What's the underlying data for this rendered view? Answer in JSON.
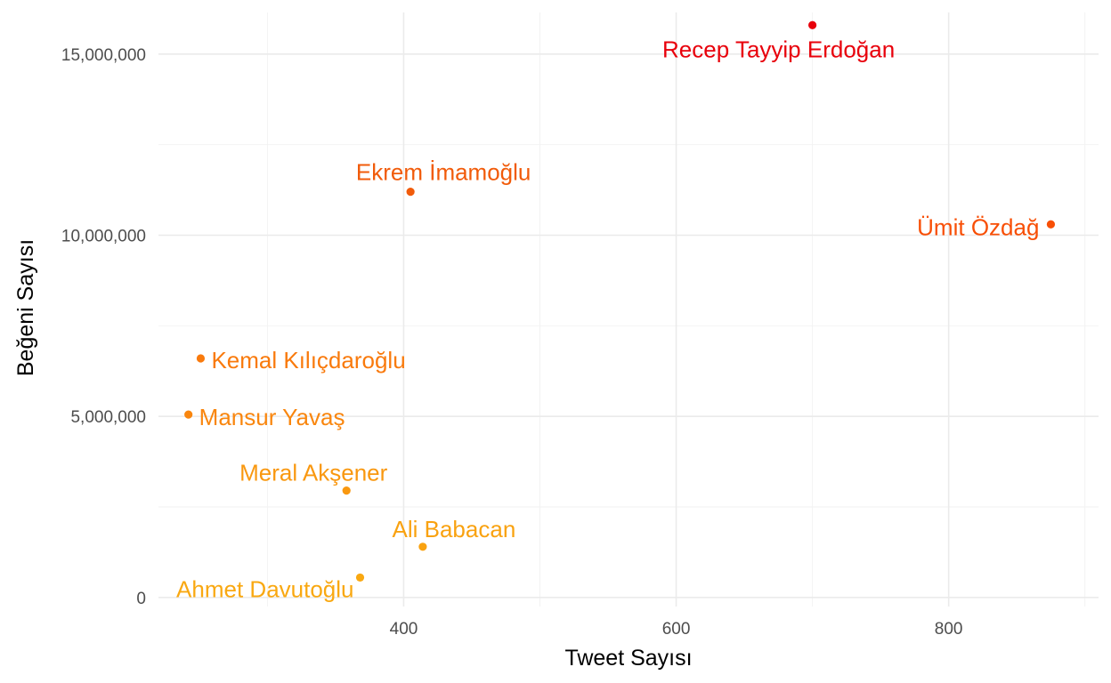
{
  "chart_data": {
    "type": "scatter",
    "xlabel": "Tweet Sayısı",
    "ylabel": "Beğeni Sayısı",
    "xlim": [
      220,
      910
    ],
    "ylim": [
      -250000,
      16150000
    ],
    "x_ticks": [
      {
        "value": 400,
        "label": "400"
      },
      {
        "value": 600,
        "label": "600"
      },
      {
        "value": 800,
        "label": "800"
      }
    ],
    "x_minor_ticks": [
      300,
      500,
      700,
      900
    ],
    "y_ticks": [
      {
        "value": 0,
        "label": "0"
      },
      {
        "value": 5000000,
        "label": "5,000,000"
      },
      {
        "value": 10000000,
        "label": "10,000,000"
      },
      {
        "value": 15000000,
        "label": "15,000,000"
      }
    ],
    "y_minor_ticks": [
      2500000,
      7500000,
      12500000
    ],
    "grid": true,
    "legend": "none",
    "points": [
      {
        "label": "Recep Tayyip Erdoğan",
        "x": 700,
        "y": 15800000,
        "color": "#e8000b"
      },
      {
        "label": "Ümit Özdağ",
        "x": 875,
        "y": 10300000,
        "color": "#f84f06"
      },
      {
        "label": "Ekrem İmamoğlu",
        "x": 405,
        "y": 11200000,
        "color": "#f15b0a"
      },
      {
        "label": "Kemal Kılıçdaroğlu",
        "x": 251,
        "y": 6600000,
        "color": "#f97a0c"
      },
      {
        "label": "Mansur Yavaş",
        "x": 242,
        "y": 5050000,
        "color": "#f9860e"
      },
      {
        "label": "Meral Akşener",
        "x": 358,
        "y": 2950000,
        "color": "#f99810"
      },
      {
        "label": "Ali Babacan",
        "x": 414,
        "y": 1400000,
        "color": "#f9a210"
      },
      {
        "label": "Ahmet Davutoğlu",
        "x": 368,
        "y": 550000,
        "color": "#f9a811"
      }
    ]
  }
}
